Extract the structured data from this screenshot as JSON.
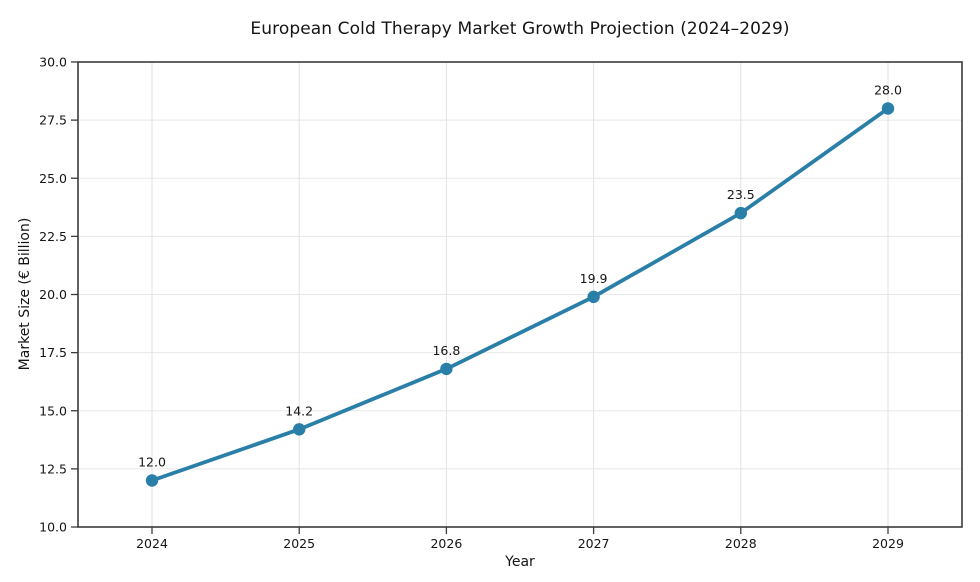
{
  "chart_data": {
    "type": "line",
    "title": "European Cold Therapy Market Growth Projection (2024–2029)",
    "xlabel": "Year",
    "ylabel": "Market Size (€ Billion)",
    "categories": [
      "2024",
      "2025",
      "2026",
      "2027",
      "2028",
      "2029"
    ],
    "series": [
      {
        "name": "Market Size",
        "values": [
          12.0,
          14.2,
          16.8,
          19.9,
          23.5,
          28.0
        ],
        "point_labels": [
          "12.0",
          "14.2",
          "16.8",
          "19.9",
          "23.5",
          "28.0"
        ]
      }
    ],
    "ylim": [
      10.0,
      30.0
    ],
    "yticks": [
      10.0,
      12.5,
      15.0,
      17.5,
      20.0,
      22.5,
      25.0,
      27.5,
      30.0
    ],
    "ytick_labels": [
      "10.0",
      "12.5",
      "15.0",
      "17.5",
      "20.0",
      "22.5",
      "25.0",
      "27.5",
      "30.0"
    ],
    "grid": true,
    "legend_position": "none",
    "colors": {
      "line": "#2a7fa8",
      "marker": "#2a7fa8",
      "grid_h": "#e8e8e8",
      "grid_v": "#e2e2e2",
      "spine": "#3b3b3b",
      "text": "#151515",
      "plot_bg": "#ffffff",
      "fig_bg": "#ffffff"
    }
  }
}
